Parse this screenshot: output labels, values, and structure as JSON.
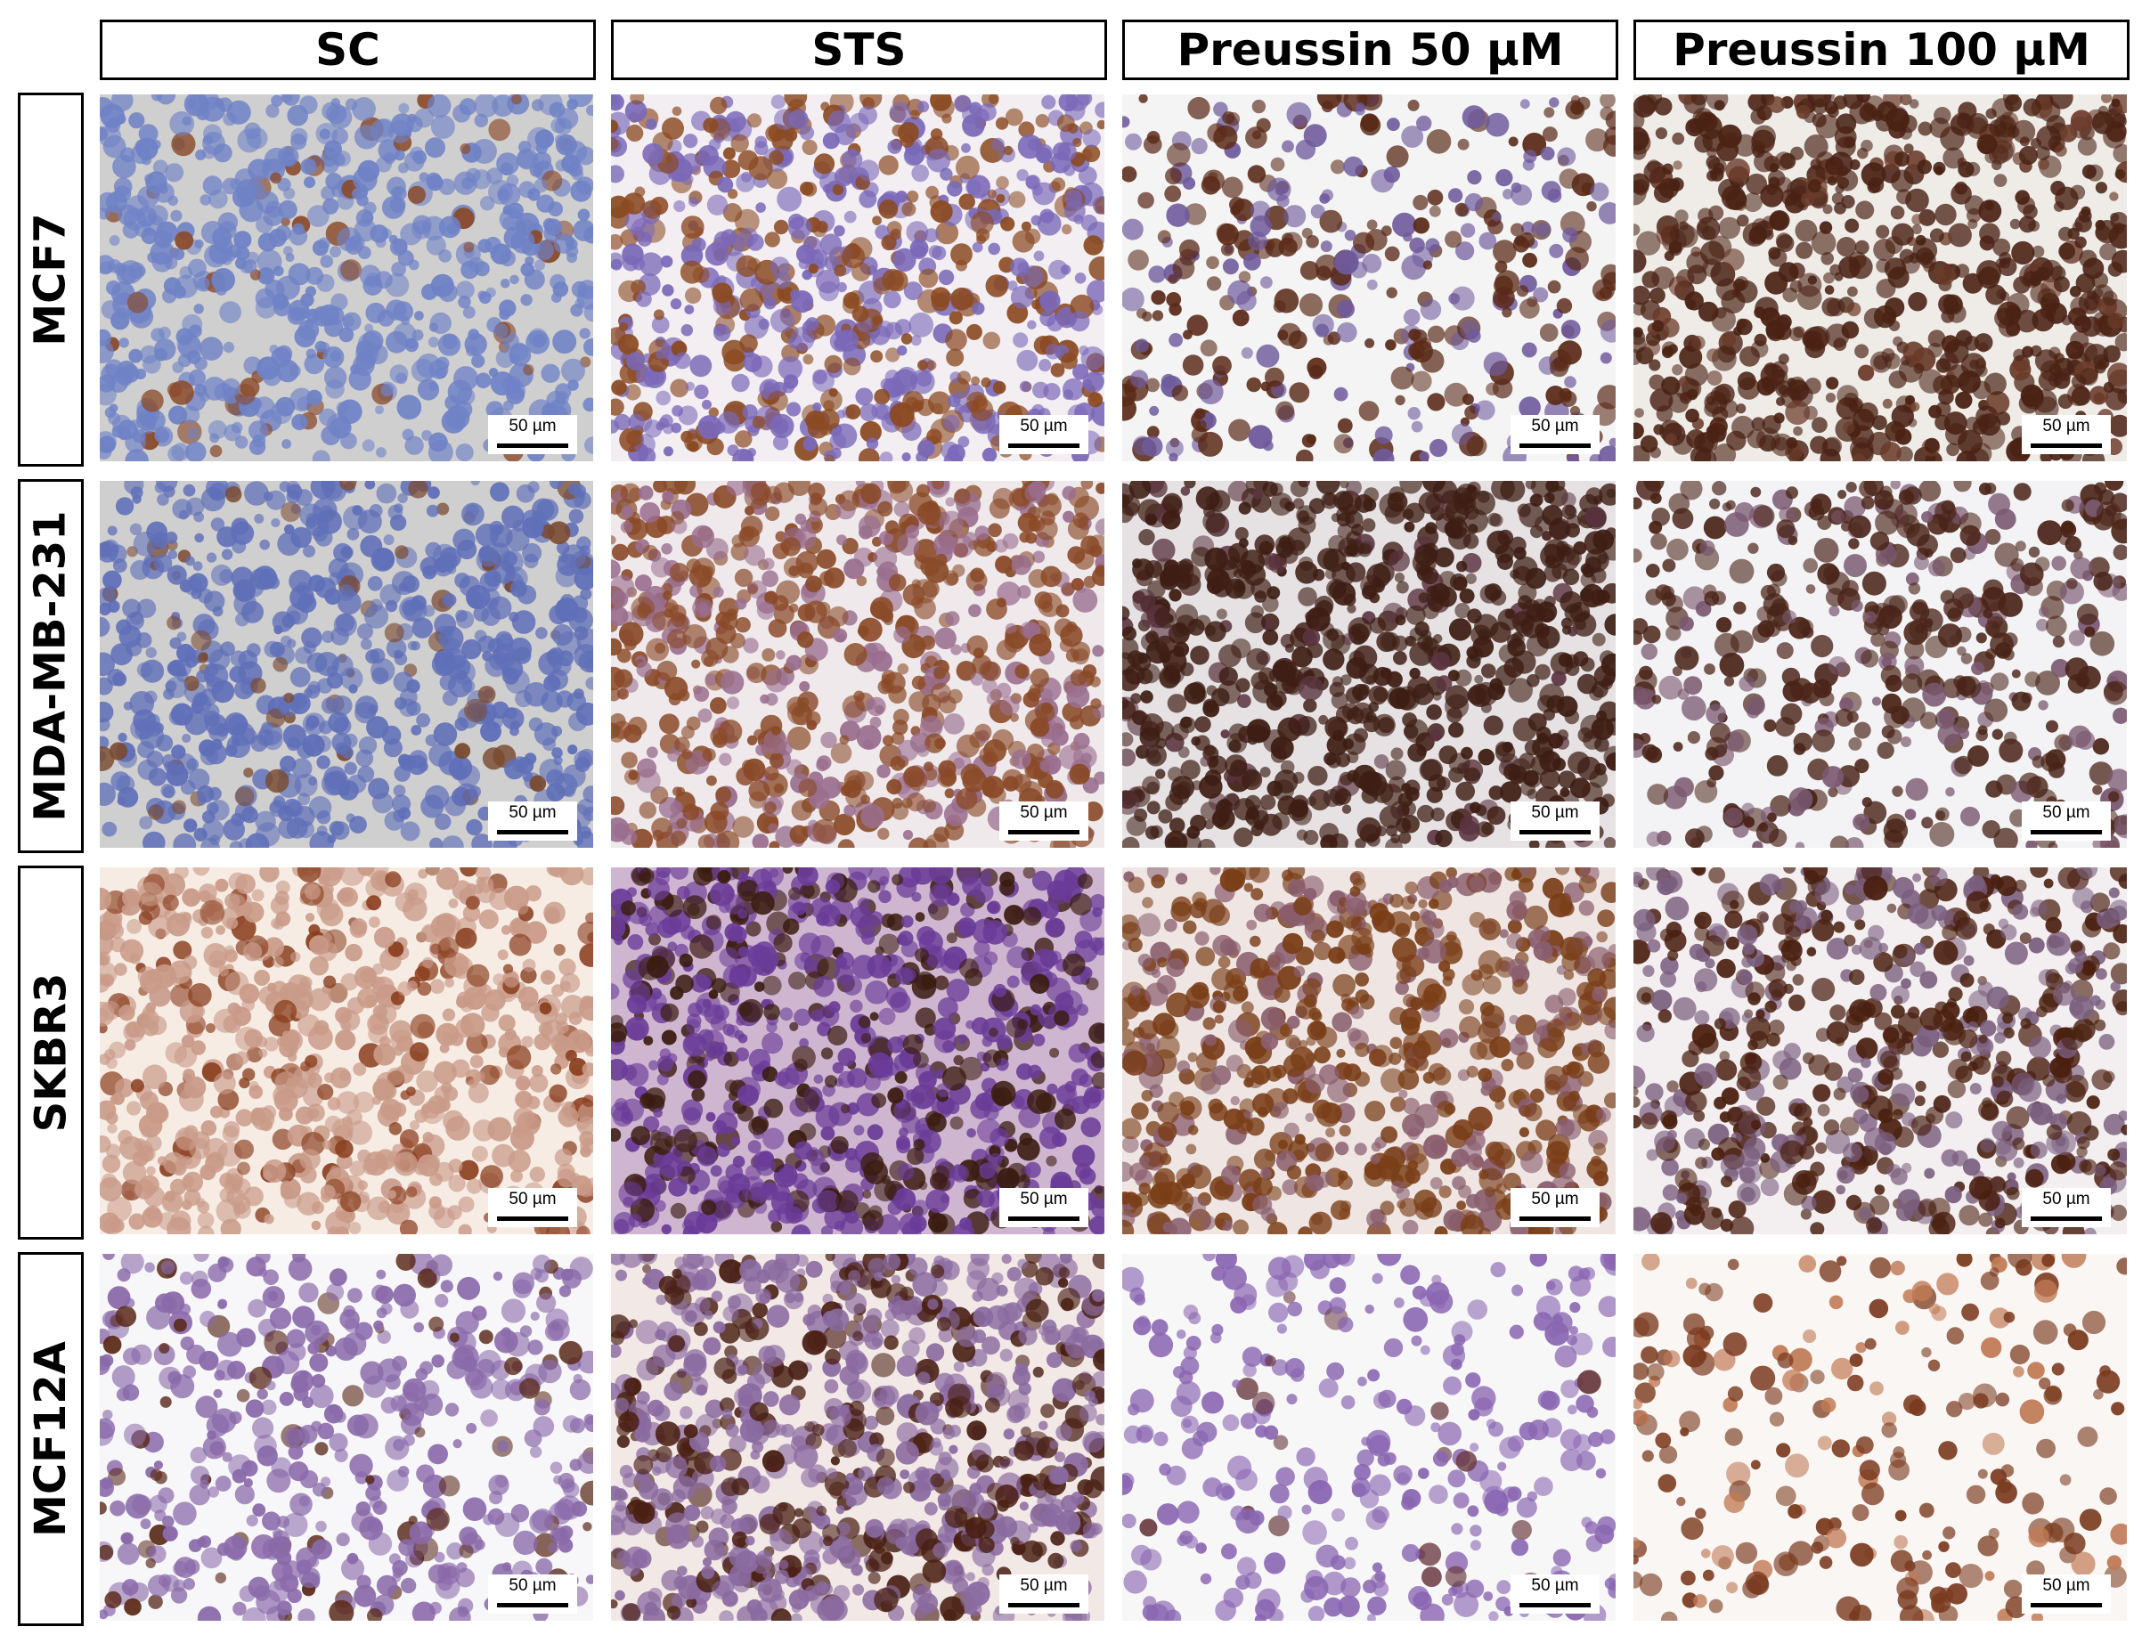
{
  "columns": [
    "SC",
    "STS",
    "Preussin 50 µM",
    "Preussin 100 µM"
  ],
  "rows": [
    "MCF7",
    "MDA-MB-231",
    "SKBR3",
    "MCF12A"
  ],
  "scale_bar_label": "50 µm",
  "panels": [
    [
      {
        "bg": "#cfcfcf",
        "cell": "#6f82c6",
        "stain": "#8a4a2a",
        "stain_fraction": 0.08,
        "coverage": 0.75
      },
      {
        "bg": "#f2eef2",
        "cell": "#7a68b8",
        "stain": "#8b4a22",
        "stain_fraction": 0.45,
        "coverage": 0.85
      },
      {
        "bg": "#f4f4f4",
        "cell": "#6f5a9c",
        "stain": "#5a2a18",
        "stain_fraction": 0.55,
        "coverage": 0.45
      },
      {
        "bg": "#efece8",
        "cell": "#6b3b2a",
        "stain": "#4a2214",
        "stain_fraction": 0.9,
        "coverage": 0.85
      }
    ],
    [
      {
        "bg": "#cfcfcf",
        "cell": "#5f6fb8",
        "stain": "#7a4a30",
        "stain_fraction": 0.1,
        "coverage": 0.8
      },
      {
        "bg": "#efe9ec",
        "cell": "#9a6e8e",
        "stain": "#8a4a28",
        "stain_fraction": 0.6,
        "coverage": 0.9
      },
      {
        "bg": "#e6e2e4",
        "cell": "#5a3440",
        "stain": "#3e1e14",
        "stain_fraction": 0.9,
        "coverage": 0.95
      },
      {
        "bg": "#f3f2f4",
        "cell": "#7a5870",
        "stain": "#4a2418",
        "stain_fraction": 0.7,
        "coverage": 0.55
      }
    ],
    [
      {
        "bg": "#f6ece4",
        "cell": "#c99a88",
        "stain": "#8a3e1e",
        "stain_fraction": 0.2,
        "coverage": 0.85
      },
      {
        "bg": "#cfb6d0",
        "cell": "#6a3c98",
        "stain": "#3a1c10",
        "stain_fraction": 0.35,
        "coverage": 0.95
      },
      {
        "bg": "#efe6e4",
        "cell": "#8a5e6e",
        "stain": "#7a3e18",
        "stain_fraction": 0.65,
        "coverage": 0.8
      },
      {
        "bg": "#f3eef0",
        "cell": "#7a5e7e",
        "stain": "#4a2010",
        "stain_fraction": 0.6,
        "coverage": 0.75
      }
    ],
    [
      {
        "bg": "#f7f6f8",
        "cell": "#8a6aaa",
        "stain": "#5a2a1a",
        "stain_fraction": 0.15,
        "coverage": 0.55
      },
      {
        "bg": "#f2e8e6",
        "cell": "#8a6aa0",
        "stain": "#4a2014",
        "stain_fraction": 0.35,
        "coverage": 0.95
      },
      {
        "bg": "#f7f7f8",
        "cell": "#8a66b2",
        "stain": "#6a3a40",
        "stain_fraction": 0.05,
        "coverage": 0.35
      },
      {
        "bg": "#faf6f4",
        "cell": "#c07a55",
        "stain": "#7a3a1e",
        "stain_fraction": 0.75,
        "coverage": 0.25
      }
    ]
  ]
}
